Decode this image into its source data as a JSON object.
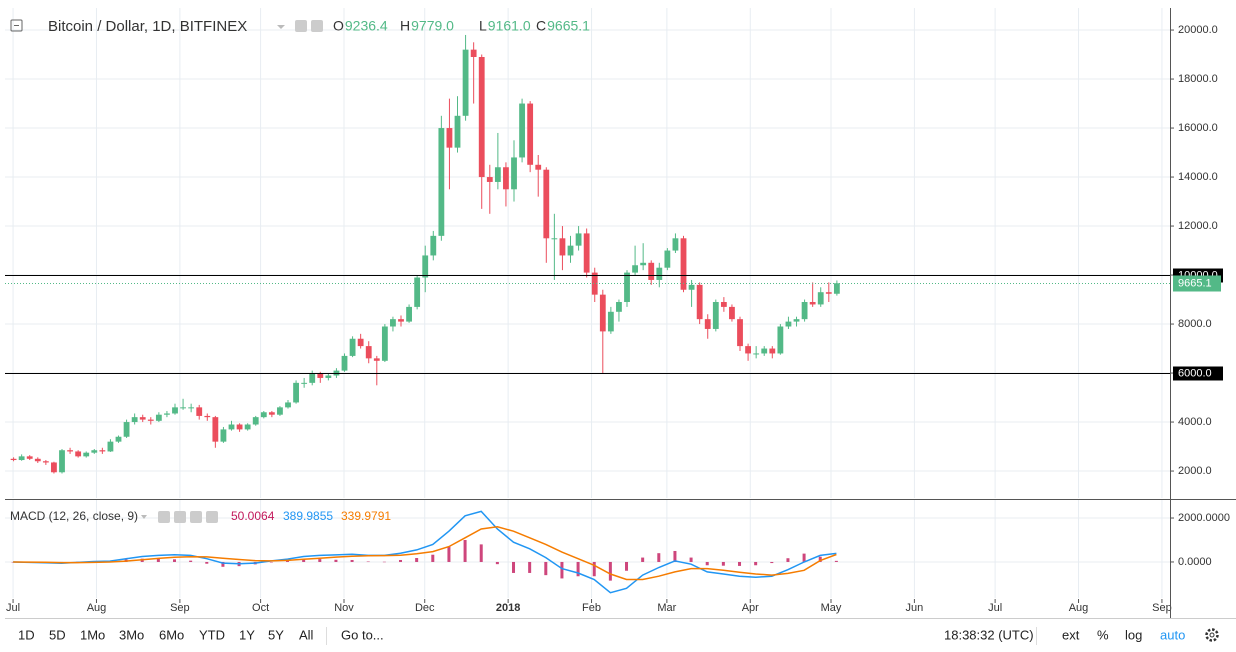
{
  "header": {
    "symbol": "Bitcoin / Dollar, 1D, BITFINEX",
    "ohlc": [
      {
        "key": "O",
        "value": "9236.4"
      },
      {
        "key": "H",
        "value": "9779.0"
      },
      {
        "key": "L",
        "value": "9161.0"
      },
      {
        "key": "C",
        "value": "9665.1"
      }
    ]
  },
  "chart_data": [
    {
      "type": "candlestick",
      "up_color": "#53b987",
      "down_color": "#eb4d5c",
      "xlim": [
        -3,
        430
      ],
      "xticks": [
        {
          "value": 0,
          "label": "Jul"
        },
        {
          "value": 31,
          "label": "Aug"
        },
        {
          "value": 62,
          "label": "Sep"
        },
        {
          "value": 92,
          "label": "Oct"
        },
        {
          "value": 123,
          "label": "Nov"
        },
        {
          "value": 153,
          "label": "Dec"
        },
        {
          "value": 184,
          "label": "2018",
          "bold": true
        },
        {
          "value": 215,
          "label": "Feb"
        },
        {
          "value": 243,
          "label": "Mar"
        },
        {
          "value": 274,
          "label": "Apr"
        },
        {
          "value": 304,
          "label": "May"
        },
        {
          "value": 335,
          "label": "Jun"
        },
        {
          "value": 365,
          "label": "Jul"
        },
        {
          "value": 396,
          "label": "Aug"
        },
        {
          "value": 427,
          "label": "Sep"
        }
      ],
      "ylim": [
        900,
        20900
      ],
      "yticks": [
        {
          "value": 2000,
          "label": "2000.0"
        },
        {
          "value": 4000,
          "label": "4000.0"
        },
        {
          "value": 6000,
          "label": "6000.0"
        },
        {
          "value": 8000,
          "label": "8000.0"
        },
        {
          "value": 10000,
          "label": "10000.0"
        },
        {
          "value": 12000,
          "label": "12000.0"
        },
        {
          "value": 14000,
          "label": "14000.0"
        },
        {
          "value": 16000,
          "label": "16000.0"
        },
        {
          "value": 18000,
          "label": "18000.0"
        },
        {
          "value": 20000,
          "label": "20000.0"
        }
      ],
      "grid": true,
      "hlines": [
        {
          "value": 10000,
          "label": "10000.0"
        },
        {
          "value": 6000,
          "label": "6000.0"
        }
      ],
      "candles": [
        {
          "x": 0,
          "o": 2500,
          "h": 2560,
          "l": 2400,
          "c": 2450
        },
        {
          "x": 3,
          "o": 2450,
          "h": 2680,
          "l": 2420,
          "c": 2600
        },
        {
          "x": 6,
          "o": 2600,
          "h": 2650,
          "l": 2450,
          "c": 2500
        },
        {
          "x": 9,
          "o": 2500,
          "h": 2560,
          "l": 2330,
          "c": 2400
        },
        {
          "x": 12,
          "o": 2400,
          "h": 2450,
          "l": 2250,
          "c": 2350
        },
        {
          "x": 15,
          "o": 2350,
          "h": 2380,
          "l": 1900,
          "c": 1950
        },
        {
          "x": 18,
          "o": 1950,
          "h": 2900,
          "l": 1900,
          "c": 2850
        },
        {
          "x": 21,
          "o": 2850,
          "h": 2950,
          "l": 2700,
          "c": 2800
        },
        {
          "x": 24,
          "o": 2800,
          "h": 2850,
          "l": 2550,
          "c": 2600
        },
        {
          "x": 27,
          "o": 2600,
          "h": 2800,
          "l": 2550,
          "c": 2750
        },
        {
          "x": 30,
          "o": 2750,
          "h": 2900,
          "l": 2700,
          "c": 2850
        },
        {
          "x": 33,
          "o": 2850,
          "h": 2950,
          "l": 2700,
          "c": 2800
        },
        {
          "x": 36,
          "o": 2800,
          "h": 3300,
          "l": 2780,
          "c": 3200
        },
        {
          "x": 39,
          "o": 3200,
          "h": 3450,
          "l": 3150,
          "c": 3400
        },
        {
          "x": 42,
          "o": 3400,
          "h": 4100,
          "l": 3350,
          "c": 4000
        },
        {
          "x": 45,
          "o": 4000,
          "h": 4350,
          "l": 3900,
          "c": 4200
        },
        {
          "x": 48,
          "o": 4200,
          "h": 4300,
          "l": 4000,
          "c": 4100
        },
        {
          "x": 51,
          "o": 4100,
          "h": 4200,
          "l": 3900,
          "c": 4050
        },
        {
          "x": 54,
          "o": 4050,
          "h": 4400,
          "l": 4000,
          "c": 4300
        },
        {
          "x": 57,
          "o": 4300,
          "h": 4450,
          "l": 4200,
          "c": 4350
        },
        {
          "x": 60,
          "o": 4350,
          "h": 4750,
          "l": 4300,
          "c": 4600
        },
        {
          "x": 63,
          "o": 4600,
          "h": 4950,
          "l": 4500,
          "c": 4600
        },
        {
          "x": 66,
          "o": 4600,
          "h": 4750,
          "l": 4400,
          "c": 4600
        },
        {
          "x": 69,
          "o": 4600,
          "h": 4700,
          "l": 4100,
          "c": 4250
        },
        {
          "x": 72,
          "o": 4250,
          "h": 4350,
          "l": 4050,
          "c": 4200
        },
        {
          "x": 75,
          "o": 4200,
          "h": 4250,
          "l": 2950,
          "c": 3200
        },
        {
          "x": 78,
          "o": 3200,
          "h": 3800,
          "l": 3150,
          "c": 3700
        },
        {
          "x": 81,
          "o": 3700,
          "h": 4050,
          "l": 3650,
          "c": 3900
        },
        {
          "x": 84,
          "o": 3900,
          "h": 3950,
          "l": 3600,
          "c": 3700
        },
        {
          "x": 87,
          "o": 3700,
          "h": 3950,
          "l": 3650,
          "c": 3900
        },
        {
          "x": 90,
          "o": 3900,
          "h": 4250,
          "l": 3850,
          "c": 4200
        },
        {
          "x": 93,
          "o": 4200,
          "h": 4450,
          "l": 4150,
          "c": 4400
        },
        {
          "x": 96,
          "o": 4400,
          "h": 4450,
          "l": 4200,
          "c": 4300
        },
        {
          "x": 99,
          "o": 4300,
          "h": 4650,
          "l": 4250,
          "c": 4600
        },
        {
          "x": 102,
          "o": 4600,
          "h": 4900,
          "l": 4550,
          "c": 4800
        },
        {
          "x": 105,
          "o": 4800,
          "h": 5700,
          "l": 4750,
          "c": 5600
        },
        {
          "x": 108,
          "o": 5600,
          "h": 5800,
          "l": 5400,
          "c": 5600
        },
        {
          "x": 111,
          "o": 5600,
          "h": 6100,
          "l": 5500,
          "c": 6000
        },
        {
          "x": 114,
          "o": 6000,
          "h": 6050,
          "l": 5600,
          "c": 5800
        },
        {
          "x": 117,
          "o": 5800,
          "h": 6000,
          "l": 5700,
          "c": 5900
        },
        {
          "x": 120,
          "o": 5900,
          "h": 6200,
          "l": 5800,
          "c": 6100
        },
        {
          "x": 123,
          "o": 6100,
          "h": 6800,
          "l": 6050,
          "c": 6700
        },
        {
          "x": 126,
          "o": 6700,
          "h": 7500,
          "l": 6650,
          "c": 7400
        },
        {
          "x": 129,
          "o": 7400,
          "h": 7600,
          "l": 7000,
          "c": 7100
        },
        {
          "x": 132,
          "o": 7100,
          "h": 7300,
          "l": 6400,
          "c": 6600
        },
        {
          "x": 135,
          "o": 6600,
          "h": 6700,
          "l": 5500,
          "c": 6500
        },
        {
          "x": 138,
          "o": 6500,
          "h": 8000,
          "l": 6450,
          "c": 7900
        },
        {
          "x": 141,
          "o": 7900,
          "h": 8300,
          "l": 7700,
          "c": 8200
        },
        {
          "x": 144,
          "o": 8200,
          "h": 8350,
          "l": 7900,
          "c": 8100
        },
        {
          "x": 147,
          "o": 8100,
          "h": 8800,
          "l": 8050,
          "c": 8700
        },
        {
          "x": 150,
          "o": 8700,
          "h": 10000,
          "l": 8600,
          "c": 9900
        },
        {
          "x": 153,
          "o": 9900,
          "h": 11200,
          "l": 9300,
          "c": 10800
        },
        {
          "x": 156,
          "o": 10800,
          "h": 11800,
          "l": 10600,
          "c": 11600
        },
        {
          "x": 159,
          "o": 11600,
          "h": 16500,
          "l": 11400,
          "c": 16000
        },
        {
          "x": 162,
          "o": 16000,
          "h": 17200,
          "l": 13500,
          "c": 15200
        },
        {
          "x": 165,
          "o": 15200,
          "h": 17300,
          "l": 15000,
          "c": 16500
        },
        {
          "x": 168,
          "o": 16500,
          "h": 19800,
          "l": 16300,
          "c": 19200
        },
        {
          "x": 171,
          "o": 19200,
          "h": 19500,
          "l": 17000,
          "c": 18900
        },
        {
          "x": 174,
          "o": 18900,
          "h": 19000,
          "l": 12700,
          "c": 14000
        },
        {
          "x": 177,
          "o": 14000,
          "h": 14500,
          "l": 12500,
          "c": 13800
        },
        {
          "x": 180,
          "o": 13800,
          "h": 15800,
          "l": 13500,
          "c": 14400
        },
        {
          "x": 183,
          "o": 14400,
          "h": 14600,
          "l": 12800,
          "c": 13500
        },
        {
          "x": 186,
          "o": 13500,
          "h": 15500,
          "l": 13000,
          "c": 14800
        },
        {
          "x": 189,
          "o": 14800,
          "h": 17200,
          "l": 14600,
          "c": 17000
        },
        {
          "x": 192,
          "o": 17000,
          "h": 17100,
          "l": 14200,
          "c": 14500
        },
        {
          "x": 195,
          "o": 14500,
          "h": 14900,
          "l": 13200,
          "c": 14300
        },
        {
          "x": 198,
          "o": 14300,
          "h": 14400,
          "l": 10500,
          "c": 11500
        },
        {
          "x": 201,
          "o": 11500,
          "h": 12500,
          "l": 9800,
          "c": 11500
        },
        {
          "x": 204,
          "o": 11500,
          "h": 12000,
          "l": 10200,
          "c": 10800
        },
        {
          "x": 207,
          "o": 10800,
          "h": 11600,
          "l": 10500,
          "c": 11200
        },
        {
          "x": 210,
          "o": 11200,
          "h": 12000,
          "l": 11000,
          "c": 11700
        },
        {
          "x": 213,
          "o": 11700,
          "h": 11900,
          "l": 9900,
          "c": 10100
        },
        {
          "x": 216,
          "o": 10100,
          "h": 10300,
          "l": 8900,
          "c": 9200
        },
        {
          "x": 219,
          "o": 9200,
          "h": 9400,
          "l": 6000,
          "c": 7700
        },
        {
          "x": 222,
          "o": 7700,
          "h": 8700,
          "l": 7600,
          "c": 8500
        },
        {
          "x": 225,
          "o": 8500,
          "h": 9000,
          "l": 8100,
          "c": 8900
        },
        {
          "x": 228,
          "o": 8900,
          "h": 10200,
          "l": 8700,
          "c": 10100
        },
        {
          "x": 231,
          "o": 10100,
          "h": 11200,
          "l": 10000,
          "c": 10400
        },
        {
          "x": 234,
          "o": 10400,
          "h": 11300,
          "l": 10200,
          "c": 10500
        },
        {
          "x": 237,
          "o": 10500,
          "h": 10600,
          "l": 9600,
          "c": 9800
        },
        {
          "x": 240,
          "o": 9800,
          "h": 10500,
          "l": 9500,
          "c": 10300
        },
        {
          "x": 243,
          "o": 10300,
          "h": 11100,
          "l": 10200,
          "c": 11000
        },
        {
          "x": 246,
          "o": 11000,
          "h": 11700,
          "l": 10900,
          "c": 11500
        },
        {
          "x": 249,
          "o": 11500,
          "h": 11600,
          "l": 9300,
          "c": 9400
        },
        {
          "x": 252,
          "o": 9400,
          "h": 9800,
          "l": 8700,
          "c": 9600
        },
        {
          "x": 255,
          "o": 9600,
          "h": 9700,
          "l": 8000,
          "c": 8200
        },
        {
          "x": 258,
          "o": 8200,
          "h": 8400,
          "l": 7400,
          "c": 7800
        },
        {
          "x": 261,
          "o": 7800,
          "h": 9000,
          "l": 7700,
          "c": 8900
        },
        {
          "x": 264,
          "o": 8900,
          "h": 9100,
          "l": 8500,
          "c": 8700
        },
        {
          "x": 267,
          "o": 8700,
          "h": 8800,
          "l": 8100,
          "c": 8200
        },
        {
          "x": 270,
          "o": 8200,
          "h": 8300,
          "l": 6900,
          "c": 7100
        },
        {
          "x": 273,
          "o": 7100,
          "h": 7200,
          "l": 6500,
          "c": 6800
        },
        {
          "x": 276,
          "o": 6800,
          "h": 7100,
          "l": 6600,
          "c": 6800
        },
        {
          "x": 279,
          "o": 6800,
          "h": 7100,
          "l": 6700,
          "c": 7000
        },
        {
          "x": 282,
          "o": 7000,
          "h": 7100,
          "l": 6600,
          "c": 6800
        },
        {
          "x": 285,
          "o": 6800,
          "h": 8000,
          "l": 6750,
          "c": 7900
        },
        {
          "x": 288,
          "o": 7900,
          "h": 8300,
          "l": 7800,
          "c": 8100
        },
        {
          "x": 291,
          "o": 8100,
          "h": 8300,
          "l": 7900,
          "c": 8200
        },
        {
          "x": 294,
          "o": 8200,
          "h": 9000,
          "l": 8100,
          "c": 8900
        },
        {
          "x": 297,
          "o": 8900,
          "h": 9700,
          "l": 8700,
          "c": 8800
        },
        {
          "x": 300,
          "o": 8800,
          "h": 9500,
          "l": 8700,
          "c": 9300
        },
        {
          "x": 303,
          "o": 9300,
          "h": 9700,
          "l": 8900,
          "c": 9236.4
        },
        {
          "x": 306,
          "o": 9236.4,
          "h": 9779,
          "l": 9161,
          "c": 9665.1
        }
      ]
    },
    {
      "type": "macd",
      "title": "MACD (12, 26, close, 9)",
      "xlim": [
        -3,
        430
      ],
      "ylim": [
        -1640,
        2820
      ],
      "yticks": [
        {
          "value": 0,
          "label": "0.0000"
        },
        {
          "value": 2000,
          "label": "2000.0000"
        }
      ],
      "x": [
        0,
        6,
        12,
        18,
        24,
        30,
        36,
        42,
        48,
        54,
        60,
        66,
        72,
        78,
        84,
        90,
        96,
        102,
        108,
        114,
        120,
        126,
        132,
        138,
        144,
        150,
        156,
        162,
        168,
        174,
        180,
        186,
        192,
        198,
        204,
        210,
        216,
        222,
        228,
        234,
        240,
        246,
        252,
        258,
        264,
        270,
        276,
        282,
        288,
        294,
        300,
        306
      ],
      "series": [
        {
          "kind": "histogram",
          "color": "#c2185b",
          "values": [
            0,
            -15,
            -25,
            -30,
            10,
            40,
            40,
            110,
            150,
            140,
            120,
            60,
            -80,
            -220,
            -190,
            -110,
            0,
            60,
            130,
            130,
            100,
            90,
            20,
            10,
            90,
            180,
            330,
            700,
            1000,
            800,
            -100,
            -500,
            -500,
            -600,
            -750,
            -650,
            -650,
            -850,
            -400,
            200,
            400,
            500,
            200,
            -150,
            -170,
            -180,
            -150,
            -50,
            170,
            380,
            240,
            50.0064
          ]
        },
        {
          "kind": "line",
          "color": "#2196f3",
          "values": [
            0,
            -20,
            -40,
            -60,
            -20,
            20,
            40,
            150,
            250,
            300,
            330,
            300,
            150,
            -50,
            -80,
            -50,
            50,
            130,
            250,
            300,
            320,
            350,
            300,
            300,
            400,
            550,
            800,
            1400,
            2100,
            2300,
            1500,
            900,
            600,
            200,
            -300,
            -500,
            -800,
            -1400,
            -1200,
            -600,
            -250,
            50,
            -100,
            -450,
            -550,
            -650,
            -700,
            -650,
            -350,
            0,
            300,
            389.9855
          ]
        },
        {
          "kind": "line",
          "color": "#f57c00",
          "values": [
            0,
            -5,
            -15,
            -30,
            -30,
            -20,
            0,
            40,
            100,
            160,
            210,
            240,
            230,
            170,
            110,
            60,
            50,
            70,
            120,
            170,
            220,
            260,
            280,
            290,
            310,
            370,
            470,
            700,
            1100,
            1500,
            1600,
            1400,
            1100,
            800,
            450,
            150,
            -150,
            -550,
            -800,
            -800,
            -650,
            -450,
            -300,
            -300,
            -380,
            -470,
            -550,
            -600,
            -520,
            -380,
            60,
            339.9791
          ]
        }
      ]
    }
  ],
  "toolbar": {
    "intervals": [
      "1D",
      "5D",
      "1Mo",
      "3Mo",
      "6Mo",
      "YTD",
      "1Y",
      "5Y",
      "All"
    ],
    "goto": "Go to...",
    "clock": "18:38:32 (UTC)",
    "options": [
      "ext",
      "%",
      "log",
      "auto"
    ]
  }
}
